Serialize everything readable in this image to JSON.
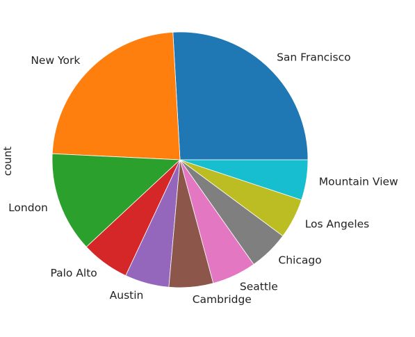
{
  "chart_data": {
    "type": "pie",
    "title": "",
    "ylabel": "count",
    "categories": [
      "San Francisco",
      "New York",
      "London",
      "Palo Alto",
      "Austin",
      "Cambridge",
      "Seattle",
      "Chicago",
      "Los Angeles",
      "Mountain View"
    ],
    "values": [
      25.5,
      23.0,
      12.5,
      6.0,
      5.5,
      5.5,
      5.5,
      5.0,
      5.0,
      5.0
    ],
    "colors": [
      "#1f77b4",
      "#ff7f0e",
      "#2ca02c",
      "#d62728",
      "#9467bd",
      "#8c564b",
      "#e377c2",
      "#7f7f7f",
      "#bcbd22",
      "#17becf"
    ],
    "start_angle_deg": 0,
    "direction": "counterclockwise",
    "legend": "none"
  }
}
